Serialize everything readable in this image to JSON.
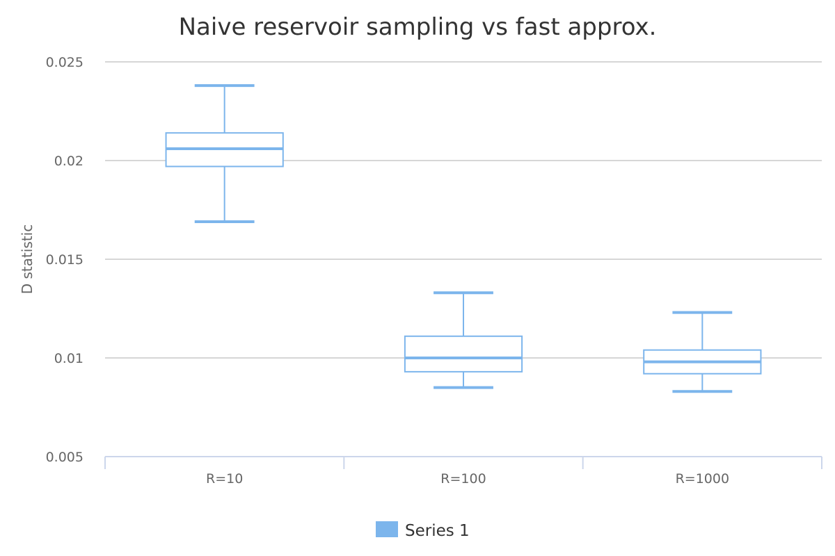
{
  "chart_data": {
    "type": "boxplot",
    "title": "Naive reservoir sampling vs fast approx.",
    "xlabel": "",
    "ylabel": "D statistic",
    "categories": [
      "R=10",
      "R=100",
      "R=1000"
    ],
    "ylim": [
      0.005,
      0.025
    ],
    "y_ticks": [
      "0.005",
      "0.01",
      "0.015",
      "0.02",
      "0.025"
    ],
    "grid": true,
    "legend_position": "bottom-center",
    "series": [
      {
        "name": "Series 1",
        "color": "#7cb5ec",
        "boxes": [
          {
            "low": 0.0169,
            "q1": 0.0197,
            "median": 0.0206,
            "q3": 0.0214,
            "high": 0.0238
          },
          {
            "low": 0.0085,
            "q1": 0.0093,
            "median": 0.01,
            "q3": 0.0111,
            "high": 0.0133
          },
          {
            "low": 0.0083,
            "q1": 0.0092,
            "median": 0.0098,
            "q3": 0.0104,
            "high": 0.0123
          }
        ]
      }
    ]
  }
}
